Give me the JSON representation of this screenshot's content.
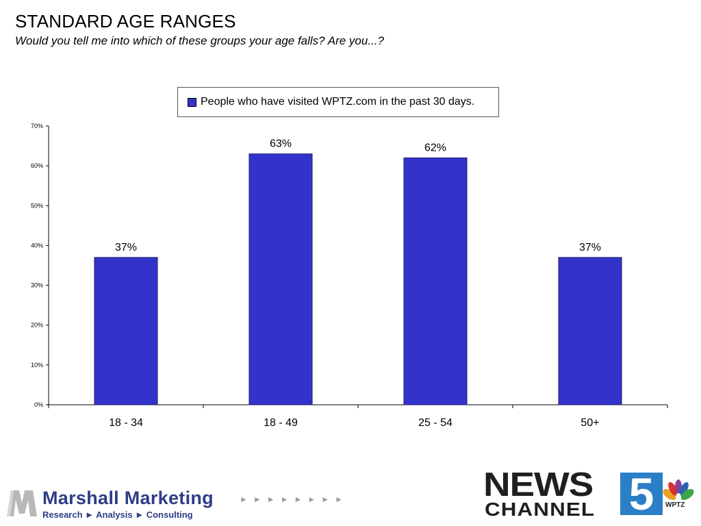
{
  "header": {
    "title": "STANDARD AGE RANGES",
    "subtitle": "Would you tell me into which of these groups your age falls?  Are you...?"
  },
  "colors": {
    "bar_fill": "#3333CC",
    "bar_stroke": "#1a1a66",
    "axis": "#000000",
    "news_blue": "#2b7fc6",
    "marshall_blue": "#2f3d86"
  },
  "chart_data": {
    "type": "bar",
    "categories": [
      "18 - 34",
      "18 - 49",
      "25 - 54",
      "50+"
    ],
    "series": [
      {
        "name": "People who have visited WPTZ.com in the past 30 days.",
        "values": [
          37,
          63,
          62,
          37
        ]
      }
    ],
    "data_labels": [
      "37%",
      "63%",
      "62%",
      "37%"
    ],
    "y_ticks": [
      "0%",
      "10%",
      "20%",
      "30%",
      "40%",
      "50%",
      "60%",
      "70%"
    ],
    "ylim": [
      0,
      70
    ],
    "grid": false,
    "legend_position": "top-center"
  },
  "footer": {
    "marshall": {
      "icon": "marshall-m-logo",
      "name": "Marshall Marketing",
      "tagline": "Research ► Analysis ► Consulting",
      "arrows": "►►►►►►►►"
    },
    "station": {
      "line1": "NEWS",
      "line2": "CHANNEL",
      "number": "5",
      "call_sign": "WPTZ",
      "icon": "nbc-peacock-icon"
    }
  }
}
